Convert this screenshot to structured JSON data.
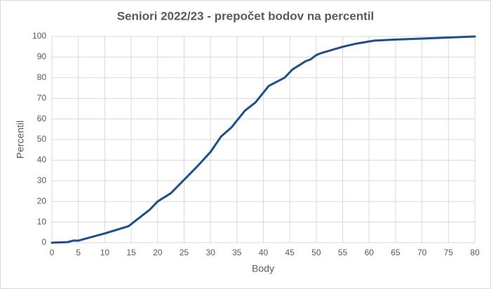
{
  "chart_data": {
    "type": "line",
    "title": "Seniori 2022/23 - prepočet bodov na percentil",
    "x_label": "Body",
    "y_label": "Percentil",
    "series": [
      {
        "name": "Percentil",
        "color": "#1f4e89",
        "x": [
          0,
          3,
          4,
          5,
          10,
          14.5,
          16.5,
          18.5,
          20,
          22.5,
          25,
          27.5,
          30,
          32,
          34,
          36.5,
          38.5,
          41,
          44,
          45.5,
          48,
          49,
          50,
          51,
          55,
          57.5,
          61,
          65,
          70,
          75,
          80
        ],
        "values": [
          0,
          0.3,
          1,
          1,
          4.5,
          8,
          12,
          16,
          20,
          24,
          30.5,
          37,
          44,
          51.5,
          56,
          64,
          68,
          76,
          80,
          84,
          88,
          89,
          91,
          92,
          95,
          96.5,
          98,
          98.5,
          99,
          99.5,
          100
        ]
      }
    ],
    "xlim": [
      0,
      80
    ],
    "xticks": [
      0,
      5,
      10,
      15,
      20,
      25,
      30,
      35,
      40,
      45,
      50,
      55,
      60,
      65,
      70,
      75,
      80
    ],
    "ylim": [
      0,
      100
    ],
    "yticks": [
      0,
      10,
      20,
      30,
      40,
      50,
      60,
      70,
      80,
      90,
      100
    ],
    "grid": true
  }
}
